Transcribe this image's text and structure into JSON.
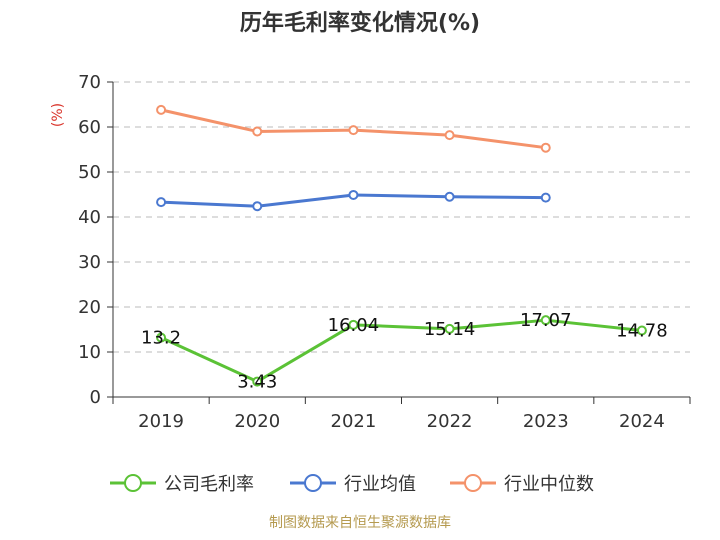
{
  "chart_data": {
    "type": "line",
    "title": "历年毛利率变化情况(%)",
    "y_unit": "(%)",
    "categories": [
      "2019",
      "2020",
      "2021",
      "2022",
      "2023",
      "2024"
    ],
    "yticks": [
      0,
      10,
      20,
      30,
      40,
      50,
      60,
      70
    ],
    "ylim": [
      0,
      70
    ],
    "grid": true,
    "legend_position": "bottom",
    "series": [
      {
        "name": "公司毛利率",
        "color": "#5bc236",
        "values": [
          13.2,
          3.43,
          16.04,
          15.14,
          17.07,
          14.78
        ],
        "labels": [
          "13.2",
          "3.43",
          "16.04",
          "15.14",
          "17.07",
          "14.78"
        ]
      },
      {
        "name": "行业均值",
        "color": "#4a78d0",
        "values": [
          43.3,
          42.4,
          44.9,
          44.5,
          44.3,
          null
        ]
      },
      {
        "name": "行业中位数",
        "color": "#f4926a",
        "values": [
          63.8,
          59.0,
          59.3,
          58.2,
          55.4,
          null
        ]
      }
    ]
  },
  "source": "制图数据来自恒生聚源数据库"
}
